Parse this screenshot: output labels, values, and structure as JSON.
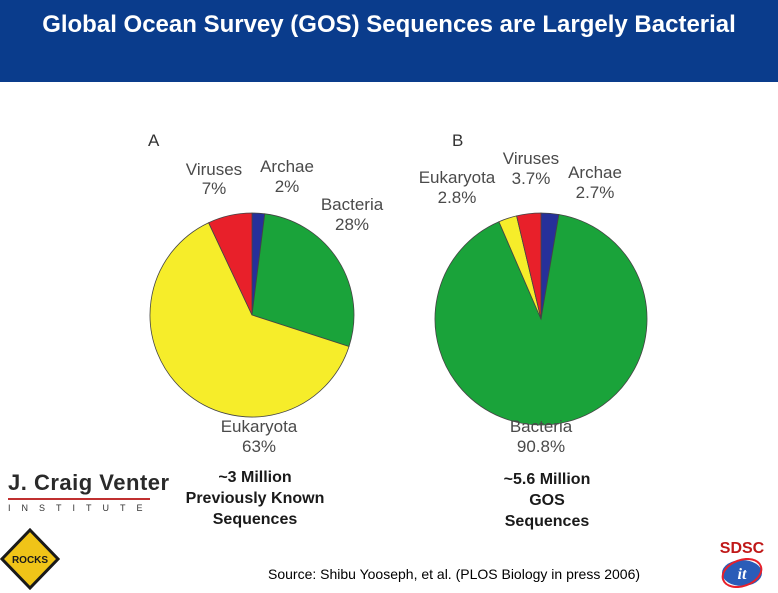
{
  "header": {
    "title": "Global Ocean Survey (GOS) Sequences are Largely Bacterial"
  },
  "colors": {
    "bacteria": "#1aa33a",
    "eukaryota": "#f6ed2a",
    "viruses": "#e8202a",
    "archae": "#26309a",
    "title_bg": "#0a3c8c"
  },
  "chart_data": [
    {
      "type": "pie",
      "panel": "A",
      "slices": [
        {
          "label": "Archae",
          "value": 2,
          "value_label": "2%"
        },
        {
          "label": "Bacteria",
          "value": 28,
          "value_label": "28%"
        },
        {
          "label": "Eukaryota",
          "value": 63,
          "value_label": "63%"
        },
        {
          "label": "Viruses",
          "value": 7,
          "value_label": "7%"
        }
      ]
    },
    {
      "type": "pie",
      "panel": "B",
      "slices": [
        {
          "label": "Archae",
          "value": 2.7,
          "value_label": "2.7%"
        },
        {
          "label": "Bacteria",
          "value": 90.8,
          "value_label": "90.8%"
        },
        {
          "label": "Eukaryota",
          "value": 2.8,
          "value_label": "2.8%"
        },
        {
          "label": "Viruses",
          "value": 3.7,
          "value_label": "3.7%"
        }
      ]
    }
  ],
  "captions": {
    "left": [
      "~3 Million",
      "Previously Known",
      "Sequences"
    ],
    "right": [
      "~5.6 Million",
      "GOS",
      "Sequences"
    ]
  },
  "source": "Source: Shibu Yooseph, et al. (PLOS Biology in press 2006)",
  "logos": {
    "jcvi_name": "J. Craig Venter",
    "jcvi_sub": "INSTITUTE",
    "rocks": "ROCKS",
    "sdsc": "SDSC",
    "sdsc_sub": "it"
  }
}
